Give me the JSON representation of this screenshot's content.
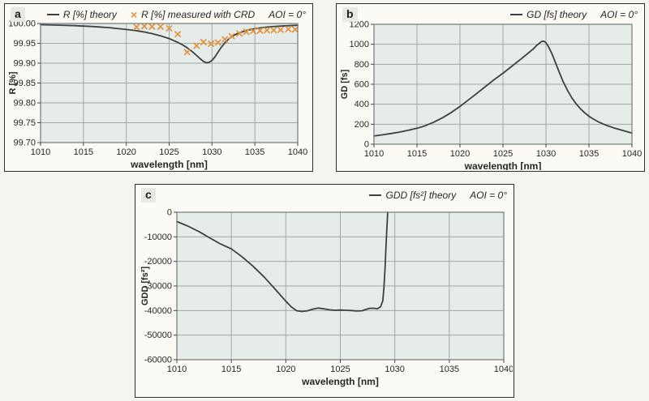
{
  "aoi_note": "AOI = 0°",
  "colors": {
    "plot_bg": "#e6ece9",
    "grid": "#9caba9",
    "spine": "#6d7d7b",
    "curve": "#3c4042",
    "marker": "#e2923b",
    "text": "#262626",
    "panel_border": "#2e2e2e"
  },
  "chart_data": [
    {
      "type": "line",
      "panel_label": "a",
      "aoi": "AOI = 0°",
      "legend": [
        {
          "marker": "line",
          "glyph": "—",
          "text": "R [%] theory"
        },
        {
          "marker": "cross",
          "glyph": "×",
          "text": "R [%] measured with CRD"
        }
      ],
      "xlabel": "wavelength [nm]",
      "ylabel": "R [%]",
      "x_axis": {
        "min": 1010,
        "max": 1040,
        "step": 5,
        "decimals": 0
      },
      "y_axis": {
        "min": 99.7,
        "max": 100.0,
        "step": 0.05,
        "decimals": 2
      },
      "grid": true,
      "legend_position": "top",
      "series": [
        {
          "name": "R [%] theory",
          "type": "line",
          "points": [
            [
              1010,
              99.997
            ],
            [
              1012,
              99.996
            ],
            [
              1014,
              99.9945
            ],
            [
              1016,
              99.9925
            ],
            [
              1018,
              99.9895
            ],
            [
              1020,
              99.985
            ],
            [
              1021,
              99.9825
            ],
            [
              1022,
              99.979
            ],
            [
              1023,
              99.9745
            ],
            [
              1024,
              99.969
            ],
            [
              1025,
              99.962
            ],
            [
              1026,
              99.9525
            ],
            [
              1026.5,
              99.947
            ],
            [
              1027,
              99.9405
            ],
            [
              1027.5,
              99.9325
            ],
            [
              1028,
              99.9235
            ],
            [
              1028.5,
              99.9135
            ],
            [
              1029,
              99.9045
            ],
            [
              1029.3,
              99.9015
            ],
            [
              1029.6,
              99.9015
            ],
            [
              1030,
              99.907
            ],
            [
              1030.3,
              99.9145
            ],
            [
              1030.7,
              99.9275
            ],
            [
              1031,
              99.9375
            ],
            [
              1031.5,
              99.9515
            ],
            [
              1032,
              99.962
            ],
            [
              1032.5,
              99.9695
            ],
            [
              1033,
              99.975
            ],
            [
              1034,
              99.9825
            ],
            [
              1035,
              99.987
            ],
            [
              1036,
              99.99
            ],
            [
              1037,
              99.992
            ],
            [
              1038,
              99.9935
            ],
            [
              1039,
              99.9945
            ],
            [
              1040,
              99.9955
            ]
          ]
        },
        {
          "name": "R [%] measured with CRD",
          "type": "scatter",
          "points": [
            [
              1021.2,
              99.991
            ],
            [
              1022.1,
              99.993
            ],
            [
              1023.0,
              99.992
            ],
            [
              1024.0,
              99.992
            ],
            [
              1025.0,
              99.988
            ],
            [
              1026.0,
              99.973
            ],
            [
              1027.1,
              99.928
            ],
            [
              1028.2,
              99.944
            ],
            [
              1029.0,
              99.953
            ],
            [
              1029.9,
              99.949
            ],
            [
              1030.7,
              99.952
            ],
            [
              1031.5,
              99.96
            ],
            [
              1032.3,
              99.968
            ],
            [
              1033.2,
              99.975
            ],
            [
              1034.0,
              99.979
            ],
            [
              1034.8,
              99.981
            ],
            [
              1035.6,
              99.982
            ],
            [
              1036.4,
              99.983
            ],
            [
              1037.2,
              99.983
            ],
            [
              1038.0,
              99.984
            ],
            [
              1038.9,
              99.986
            ],
            [
              1039.7,
              99.985
            ]
          ]
        }
      ]
    },
    {
      "type": "line",
      "panel_label": "b",
      "aoi": "AOI = 0°",
      "legend": [
        {
          "marker": "line",
          "glyph": "—",
          "text": "GD [fs] theory"
        }
      ],
      "xlabel": "wavelength [nm]",
      "ylabel": "GD [fs]",
      "x_axis": {
        "min": 1010,
        "max": 1040,
        "step": 5,
        "decimals": 0
      },
      "y_axis": {
        "min": 0,
        "max": 1200,
        "step": 200,
        "decimals": 0
      },
      "grid": true,
      "legend_position": "top",
      "series": [
        {
          "name": "GD [fs] theory",
          "type": "line",
          "points": [
            [
              1010,
              82
            ],
            [
              1011,
              94
            ],
            [
              1012,
              107
            ],
            [
              1013,
              122
            ],
            [
              1014,
              140
            ],
            [
              1015,
              160
            ],
            [
              1016,
              186
            ],
            [
              1017,
              222
            ],
            [
              1018,
              266
            ],
            [
              1019,
              318
            ],
            [
              1020,
              378
            ],
            [
              1021,
              444
            ],
            [
              1022,
              512
            ],
            [
              1023,
              580
            ],
            [
              1024,
              648
            ],
            [
              1025,
              710
            ],
            [
              1026,
              778
            ],
            [
              1027,
              846
            ],
            [
              1028,
              916
            ],
            [
              1028.5,
              952
            ],
            [
              1029,
              995
            ],
            [
              1029.5,
              1028
            ],
            [
              1029.8,
              1030
            ],
            [
              1030,
              1015
            ],
            [
              1030.3,
              975
            ],
            [
              1030.7,
              905
            ],
            [
              1031,
              840
            ],
            [
              1031.5,
              730
            ],
            [
              1032,
              625
            ],
            [
              1032.5,
              540
            ],
            [
              1033,
              465
            ],
            [
              1033.5,
              405
            ],
            [
              1034,
              355
            ],
            [
              1034.5,
              315
            ],
            [
              1035,
              280
            ],
            [
              1035.5,
              252
            ],
            [
              1036,
              228
            ],
            [
              1036.5,
              208
            ],
            [
              1037,
              190
            ],
            [
              1037.5,
              175
            ],
            [
              1038,
              160
            ],
            [
              1038.5,
              148
            ],
            [
              1039,
              136
            ],
            [
              1039.5,
              124
            ],
            [
              1040,
              112
            ]
          ]
        }
      ]
    },
    {
      "type": "line",
      "panel_label": "c",
      "aoi": "AOI = 0°",
      "legend": [
        {
          "marker": "line",
          "glyph": "—",
          "text": "GDD [fs²] theory"
        }
      ],
      "xlabel": "wavelength [nm]",
      "ylabel": "GDD [fs²]",
      "x_axis": {
        "min": 1010,
        "max": 1040,
        "step": 5,
        "decimals": 0
      },
      "y_axis": {
        "min": -60000,
        "max": 0,
        "step": 10000,
        "decimals": 0
      },
      "grid": true,
      "legend_position": "top",
      "series": [
        {
          "name": "GDD [fs²] theory",
          "type": "line",
          "points": [
            [
              1010,
              -3800
            ],
            [
              1011,
              -5600
            ],
            [
              1012,
              -7800
            ],
            [
              1013,
              -10400
            ],
            [
              1014,
              -12900
            ],
            [
              1015,
              -14900
            ],
            [
              1016,
              -18200
            ],
            [
              1017,
              -22000
            ],
            [
              1018,
              -26300
            ],
            [
              1019,
              -31200
            ],
            [
              1020,
              -36200
            ],
            [
              1020.5,
              -38500
            ],
            [
              1021,
              -40100
            ],
            [
              1021.5,
              -40400
            ],
            [
              1022,
              -40100
            ],
            [
              1022.5,
              -39400
            ],
            [
              1023,
              -39000
            ],
            [
              1023.5,
              -39300
            ],
            [
              1024,
              -39700
            ],
            [
              1024.5,
              -39900
            ],
            [
              1025,
              -39800
            ],
            [
              1025.5,
              -39900
            ],
            [
              1026,
              -40000
            ],
            [
              1026.5,
              -40200
            ],
            [
              1027,
              -40100
            ],
            [
              1027.3,
              -39600
            ],
            [
              1027.7,
              -39100
            ],
            [
              1028.1,
              -39050
            ],
            [
              1028.4,
              -39300
            ],
            [
              1028.7,
              -38400
            ],
            [
              1028.9,
              -36000
            ],
            [
              1029.0,
              -31000
            ],
            [
              1029.1,
              -23000
            ],
            [
              1029.2,
              -13000
            ],
            [
              1029.3,
              -4000
            ],
            [
              1029.35,
              0
            ]
          ]
        }
      ]
    }
  ]
}
